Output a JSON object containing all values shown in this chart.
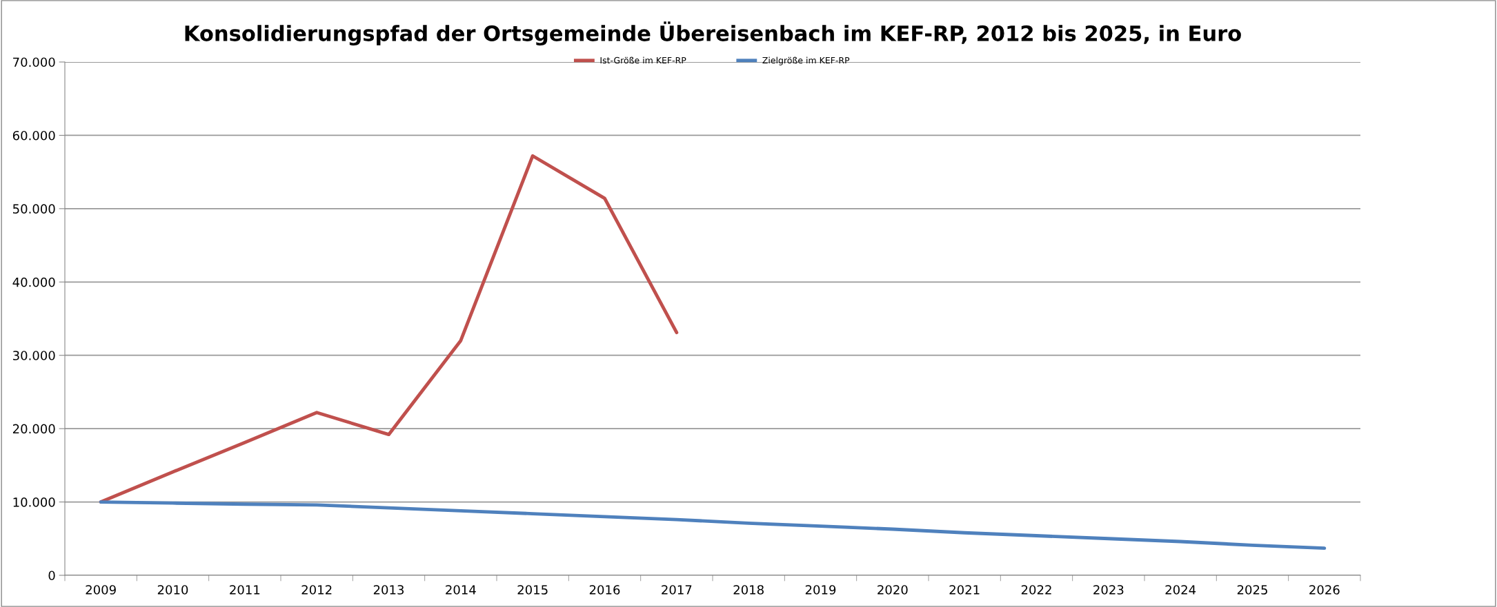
{
  "chart_data": {
    "type": "line",
    "title": "Konsolidierungspfad der Ortsgemeinde Übereisenbach im KEF-RP, 2012 bis 2025, in Euro",
    "categories": [
      "2009",
      "2010",
      "2011",
      "2012",
      "2013",
      "2014",
      "2015",
      "2016",
      "2017",
      "2018",
      "2019",
      "2020",
      "2021",
      "2022",
      "2023",
      "2024",
      "2025",
      "2026"
    ],
    "series": [
      {
        "name": "Ist-Größe im KEF-RP",
        "color": "#c0504d",
        "values": [
          10000,
          14100,
          18100,
          22200,
          19200,
          32000,
          57200,
          51400,
          33100,
          null,
          null,
          null,
          null,
          null,
          null,
          null,
          null,
          null
        ]
      },
      {
        "name": "Zielgröße im KEF-RP",
        "color": "#4f81bd",
        "values": [
          10000,
          9850,
          9700,
          9600,
          9200,
          8800,
          8400,
          8000,
          7600,
          7100,
          6700,
          6300,
          5800,
          5400,
          5000,
          4600,
          4100,
          3700
        ]
      }
    ],
    "ylim": [
      0,
      70000
    ],
    "yticks": [
      {
        "value": 0,
        "label": "0"
      },
      {
        "value": 10000,
        "label": "10.000"
      },
      {
        "value": 20000,
        "label": "20.000"
      },
      {
        "value": 30000,
        "label": "30.000"
      },
      {
        "value": 40000,
        "label": "40.000"
      },
      {
        "value": 50000,
        "label": "50.000"
      },
      {
        "value": 60000,
        "label": "60.000"
      },
      {
        "value": 70000,
        "label": "70.000"
      }
    ],
    "grid": "y",
    "legend": "top",
    "marker": "none",
    "line_style": "solid"
  }
}
